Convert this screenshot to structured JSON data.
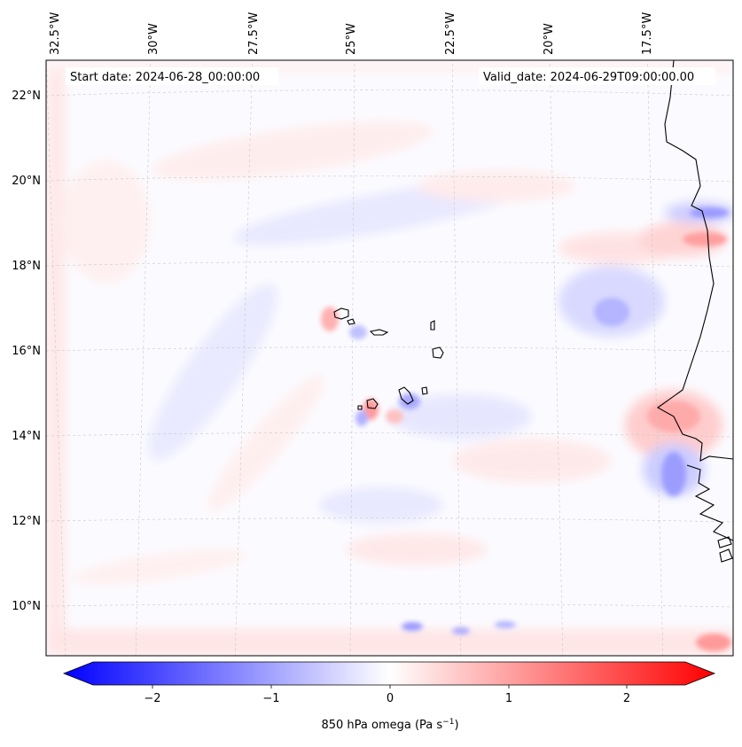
{
  "map": {
    "start_label": "Start date: 2024-06-28_00:00:00",
    "valid_label": "Valid_date: 2024-06-29T09:00:00.00",
    "lon_labels": [
      "32.5°W",
      "30°W",
      "27.5°W",
      "25°W",
      "22.5°W",
      "20°W",
      "17.5°W"
    ],
    "lat_labels": [
      "22°N",
      "20°N",
      "18°N",
      "16°N",
      "14°N",
      "12°N",
      "10°N"
    ],
    "field_colors": {
      "background": "#fbfbff",
      "positive": "#ff0000",
      "negative": "#0000ff",
      "coastline": "#000000"
    }
  },
  "colorbar": {
    "ticks": [
      "−2",
      "−1",
      "0",
      "1",
      "2"
    ],
    "label": "850 hPa omega (Pa s",
    "label_sup": "−1",
    "label_end": ")",
    "range": [
      -2.6,
      2.6
    ]
  }
}
